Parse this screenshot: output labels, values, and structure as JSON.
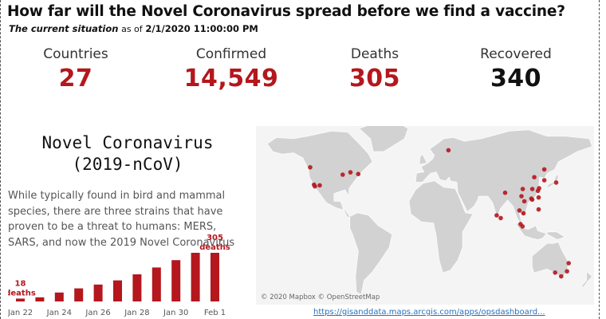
{
  "header": {
    "title": "How far will the Novel Coronavirus spread before we find a vaccine?",
    "subtitle_lead": "The current situation",
    "subtitle_asof": "as of",
    "subtitle_timestamp": "2/1/2020 11:00:00 PM"
  },
  "stats": [
    {
      "label": "Countries",
      "value": "27",
      "color": "#b4171d"
    },
    {
      "label": "Confirmed",
      "value": "14,549",
      "color": "#b4171d"
    },
    {
      "label": "Deaths",
      "value": "305",
      "color": "#b4171d"
    },
    {
      "label": "Recovered",
      "value": "340",
      "color": "#111111"
    }
  ],
  "info": {
    "title_line1": "Novel Coronavirus",
    "title_line2": "(2019-nCoV)",
    "description": "While typically found in bird and mammal species, there are three strains that have proven to be a threat to humans: MERS, SARS, and now the 2019 Novel Coronavirus"
  },
  "chart_data": {
    "type": "bar",
    "categories": [
      "Jan 22",
      "Jan 23",
      "Jan 24",
      "Jan 25",
      "Jan 26",
      "Jan 27",
      "Jan 28",
      "Jan 29",
      "Jan 30",
      "Jan 31",
      "Feb 1"
    ],
    "values": [
      18,
      26,
      56,
      82,
      106,
      132,
      170,
      213,
      259,
      305,
      305
    ],
    "x_tick_labels": [
      "Jan 22",
      "Jan 24",
      "Jan 26",
      "Jan 28",
      "Jan 30",
      "Feb 1"
    ],
    "annotations": [
      {
        "category": "Jan 22",
        "value_text": "18",
        "unit_text": "deaths"
      },
      {
        "category": "Feb 1",
        "value_text": "305",
        "unit_text": "deaths"
      }
    ],
    "bar_color": "#b4171d",
    "ylim": [
      0,
      330
    ]
  },
  "map": {
    "attribution": "© 2020 Mapbox © OpenStreetMap",
    "land_color": "#d2d2d2",
    "ocean_color": "#f4f4f4",
    "point_color": "#b4171d",
    "markers": [
      {
        "name": "Seattle",
        "lon": -122.3,
        "lat": 47.6
      },
      {
        "name": "Los Angeles",
        "lon": -118.2,
        "lat": 34.0
      },
      {
        "name": "San Diego",
        "lon": -117.2,
        "lat": 32.7
      },
      {
        "name": "Chicago",
        "lon": -87.6,
        "lat": 41.9
      },
      {
        "name": "Boston",
        "lon": -71.1,
        "lat": 42.4
      },
      {
        "name": "Phoenix",
        "lon": -112.1,
        "lat": 33.5
      },
      {
        "name": "Toronto",
        "lon": -79.4,
        "lat": 43.7
      },
      {
        "name": "Finland",
        "lon": 25.0,
        "lat": 61.0
      },
      {
        "name": "Hubei",
        "lon": 114.3,
        "lat": 30.6
      },
      {
        "name": "Guangdong",
        "lon": 113.3,
        "lat": 23.1
      },
      {
        "name": "Zhejiang",
        "lon": 120.2,
        "lat": 29.2
      },
      {
        "name": "Beijing",
        "lon": 116.4,
        "lat": 39.9
      },
      {
        "name": "Shanghai",
        "lon": 121.5,
        "lat": 31.2
      },
      {
        "name": "Japan",
        "lon": 139.7,
        "lat": 35.7
      },
      {
        "name": "Korea",
        "lon": 127.0,
        "lat": 37.5
      },
      {
        "name": "Heilongjiang",
        "lon": 127.0,
        "lat": 46.0
      },
      {
        "name": "Taiwan",
        "lon": 121.0,
        "lat": 24.0
      },
      {
        "name": "Hong Kong",
        "lon": 114.2,
        "lat": 22.3
      },
      {
        "name": "Thailand",
        "lon": 100.5,
        "lat": 13.8
      },
      {
        "name": "Vietnam",
        "lon": 105.8,
        "lat": 21.0
      },
      {
        "name": "Singapore",
        "lon": 103.8,
        "lat": 1.3
      },
      {
        "name": "Malaysia",
        "lon": 101.7,
        "lat": 3.1
      },
      {
        "name": "Cambodia",
        "lon": 104.9,
        "lat": 11.6
      },
      {
        "name": "Sri Lanka",
        "lon": 80.7,
        "lat": 7.9
      },
      {
        "name": "India",
        "lon": 76.3,
        "lat": 10.0
      },
      {
        "name": "Nepal",
        "lon": 85.3,
        "lat": 27.7
      },
      {
        "name": "Philippines",
        "lon": 121.0,
        "lat": 14.6
      },
      {
        "name": "Sichuan",
        "lon": 104.1,
        "lat": 30.6
      },
      {
        "name": "Yunnan",
        "lon": 102.7,
        "lat": 25.0
      },
      {
        "name": "Brisbane",
        "lon": 153.0,
        "lat": -27.5
      },
      {
        "name": "Sydney",
        "lon": 151.2,
        "lat": -33.9
      },
      {
        "name": "Melbourne",
        "lon": 145.0,
        "lat": -37.8
      },
      {
        "name": "Adelaide",
        "lon": 138.6,
        "lat": -34.9
      }
    ]
  },
  "source": {
    "link_text": "https://gisanddata.maps.arcgis.com/apps/opsdashboard..."
  }
}
